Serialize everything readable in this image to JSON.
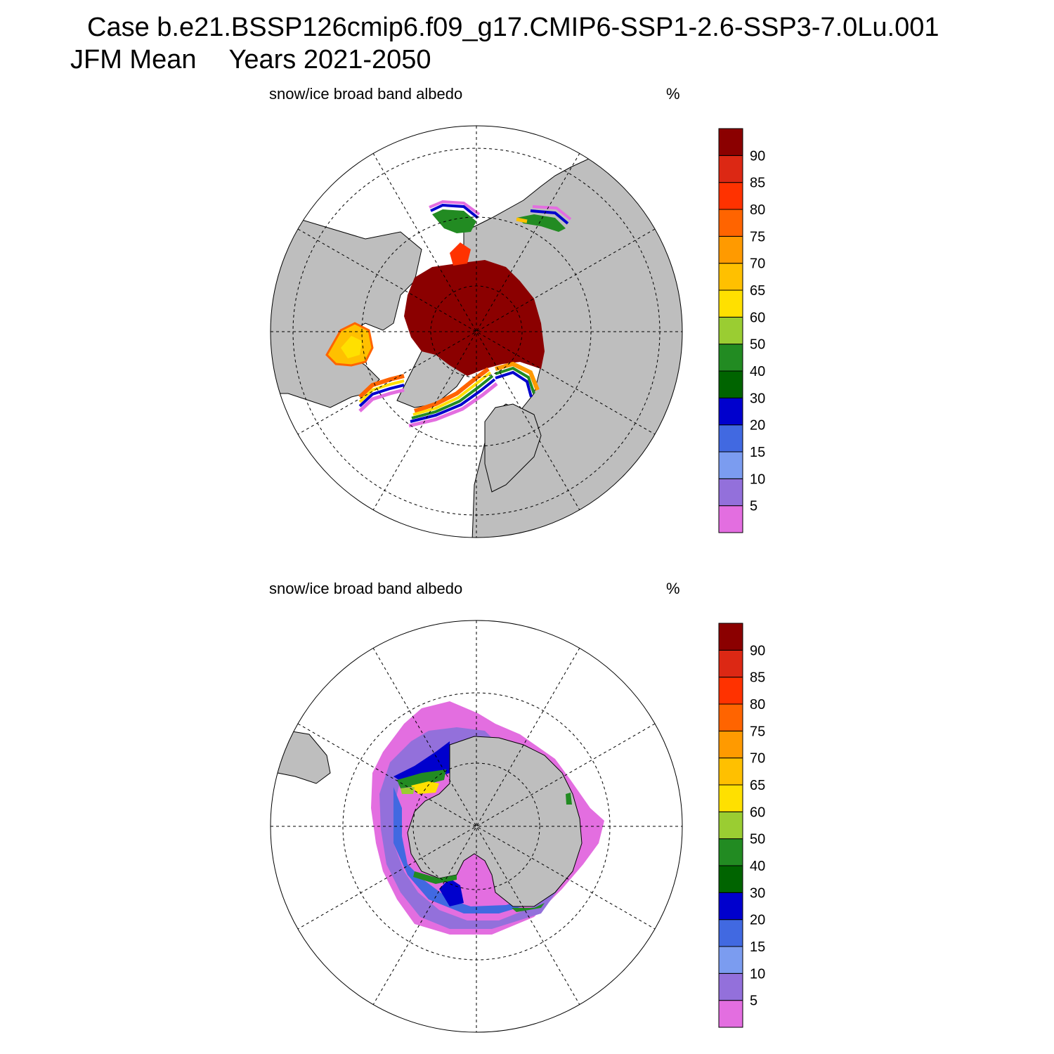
{
  "header": {
    "case_line": "Case b.e21.BSSP126cmip6.f09_g17.CMIP6-SSP1-2.6-SSP3-7.0Lu.001",
    "season": "JFM Mean",
    "years": "Years 2021-2050"
  },
  "colors": {
    "land": "#bebebe",
    "colorbar": [
      "#e36ee0",
      "#9370db",
      "#7b9cf0",
      "#4169e1",
      "#0000cd",
      "#006400",
      "#228b22",
      "#9acd32",
      "#ffe000",
      "#ffc000",
      "#ff9a00",
      "#ff6400",
      "#ff3200",
      "#dc2814",
      "#8b0000"
    ]
  },
  "colorbar_labels": [
    "5",
    "10",
    "15",
    "20",
    "30",
    "40",
    "50",
    "60",
    "65",
    "70",
    "75",
    "80",
    "85",
    "90"
  ],
  "panels": [
    {
      "id": "nh",
      "title": "snow/ice broad band albedo",
      "units": "%"
    },
    {
      "id": "sh",
      "title": "snow/ice broad band albedo",
      "units": "%"
    }
  ]
}
